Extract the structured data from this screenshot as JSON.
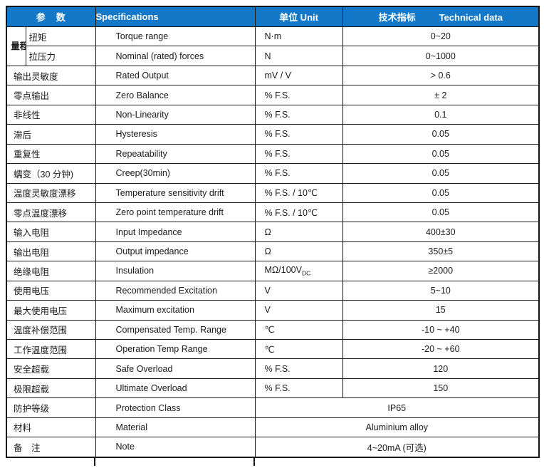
{
  "colors": {
    "header_blue": "#1478c8",
    "border": "#1a1a1a",
    "header_text": "#ffffff",
    "body_text": "#1a1a1a"
  },
  "table": {
    "headers": {
      "parameter": "参　数",
      "specifications": "Specifications",
      "unit": "单位 Unit",
      "technical_zh": "技术指标",
      "technical_en": "Technical data"
    },
    "rows": [
      {
        "group": "量程",
        "zh": "扭矩",
        "en": "Torque range",
        "unit": "N·m",
        "value": "0~20"
      },
      {
        "in_group": true,
        "zh": "拉压力",
        "en": "Nominal (rated) forces",
        "unit": "N",
        "value": "0~1000"
      },
      {
        "zh": "输出灵敏度",
        "en": "Rated Output",
        "unit": "mV / V",
        "value": "> 0.6"
      },
      {
        "zh": "零点输出",
        "en": "Zero Balance",
        "unit": "% F.S.",
        "value": "± 2"
      },
      {
        "zh": "非线性",
        "en": "Non-Linearity",
        "unit": "% F.S.",
        "value": "0.1"
      },
      {
        "zh": "滞后",
        "en": "Hysteresis",
        "unit": "% F.S.",
        "value": "0.05"
      },
      {
        "zh": "重复性",
        "en": "Repeatability",
        "unit": "% F.S.",
        "value": "0.05"
      },
      {
        "zh": "蠕变（30 分钟)",
        "en": "Creep(30min)",
        "unit": "% F.S.",
        "value": "0.05"
      },
      {
        "zh": "温度灵敏度漂移",
        "en": "Temperature sensitivity drift",
        "unit": "% F.S. / 10℃",
        "value": "0.05"
      },
      {
        "zh": "零点温度漂移",
        "en": "Zero point temperature drift",
        "unit": "% F.S. / 10℃",
        "value": "0.05"
      },
      {
        "zh": "输入电阻",
        "en": "Input Impedance",
        "unit": "Ω",
        "value": "400±30"
      },
      {
        "zh": "输出电阻",
        "en": "Output impedance",
        "unit": "Ω",
        "value": "350±5"
      },
      {
        "zh": "绝缘电阻",
        "en": "Insulation",
        "unit": "MΩ/100V",
        "unit_sub": "DC",
        "value": "≥2000"
      },
      {
        "zh": "使用电压",
        "en": "Recommended Excitation",
        "unit": "V",
        "value": "5~10"
      },
      {
        "zh": "最大使用电压",
        "en": "Maximum excitation",
        "unit": "V",
        "value": "15"
      },
      {
        "zh": "温度补偿范围",
        "en": "Compensated Temp. Range",
        "unit": "℃",
        "value": "-10 ~ +40"
      },
      {
        "zh": "工作温度范围",
        "en": "Operation Temp Range",
        "unit": "℃",
        "value": "-20 ~ +60"
      },
      {
        "zh": "安全超载",
        "en": "Safe Overload",
        "unit": "% F.S.",
        "value": "120"
      },
      {
        "zh": "极限超载",
        "en": "Ultimate Overload",
        "unit": "% F.S.",
        "value": "150"
      },
      {
        "zh": "防护等级",
        "en": "Protection Class",
        "merged": "IP65"
      },
      {
        "zh": "材料",
        "en": "Material",
        "merged": "Aluminium alloy"
      },
      {
        "zh": "备　注",
        "en": "Note",
        "merged": "4~20mA (可选)"
      }
    ]
  }
}
